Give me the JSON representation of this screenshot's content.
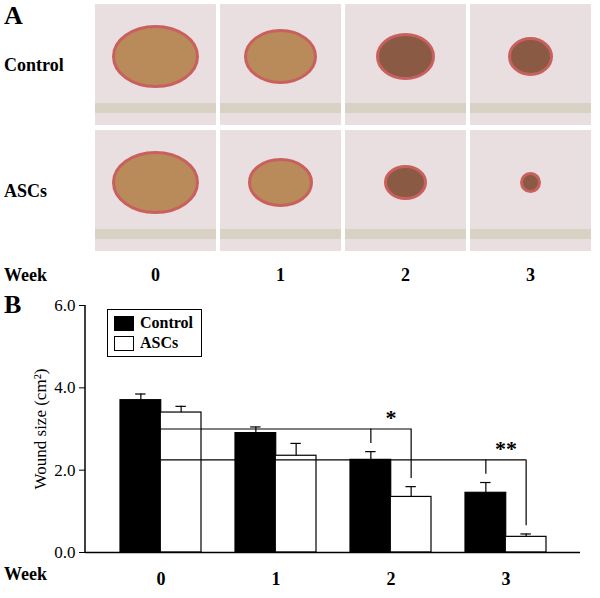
{
  "photo_panel": {
    "label": "A",
    "rows": [
      "Control",
      "ASCs"
    ],
    "columns_title": "Week",
    "columns": [
      "0",
      "1",
      "2",
      "3"
    ]
  },
  "chart_data": {
    "type": "bar",
    "title": "B",
    "categories": [
      "0",
      "1",
      "2",
      "3"
    ],
    "x_label": "Week",
    "y_label": "Wound size (cm²)",
    "series": [
      {
        "name": "Control",
        "color": "#000000",
        "values": [
          3.7,
          2.9,
          2.25,
          1.45
        ],
        "errors": [
          0.15,
          0.15,
          0.2,
          0.25
        ]
      },
      {
        "name": "ASCs",
        "color": "#ffffff",
        "values": [
          3.4,
          2.35,
          1.35,
          0.38
        ],
        "errors": [
          0.15,
          0.3,
          0.25,
          0.07
        ]
      }
    ],
    "ylim": [
      0,
      6
    ],
    "yticks": [
      0,
      2,
      4,
      6
    ],
    "grid": false,
    "legend": "top-left",
    "annotations": [
      {
        "category": "2",
        "text": "*"
      },
      {
        "category": "3",
        "text": "**"
      }
    ]
  }
}
